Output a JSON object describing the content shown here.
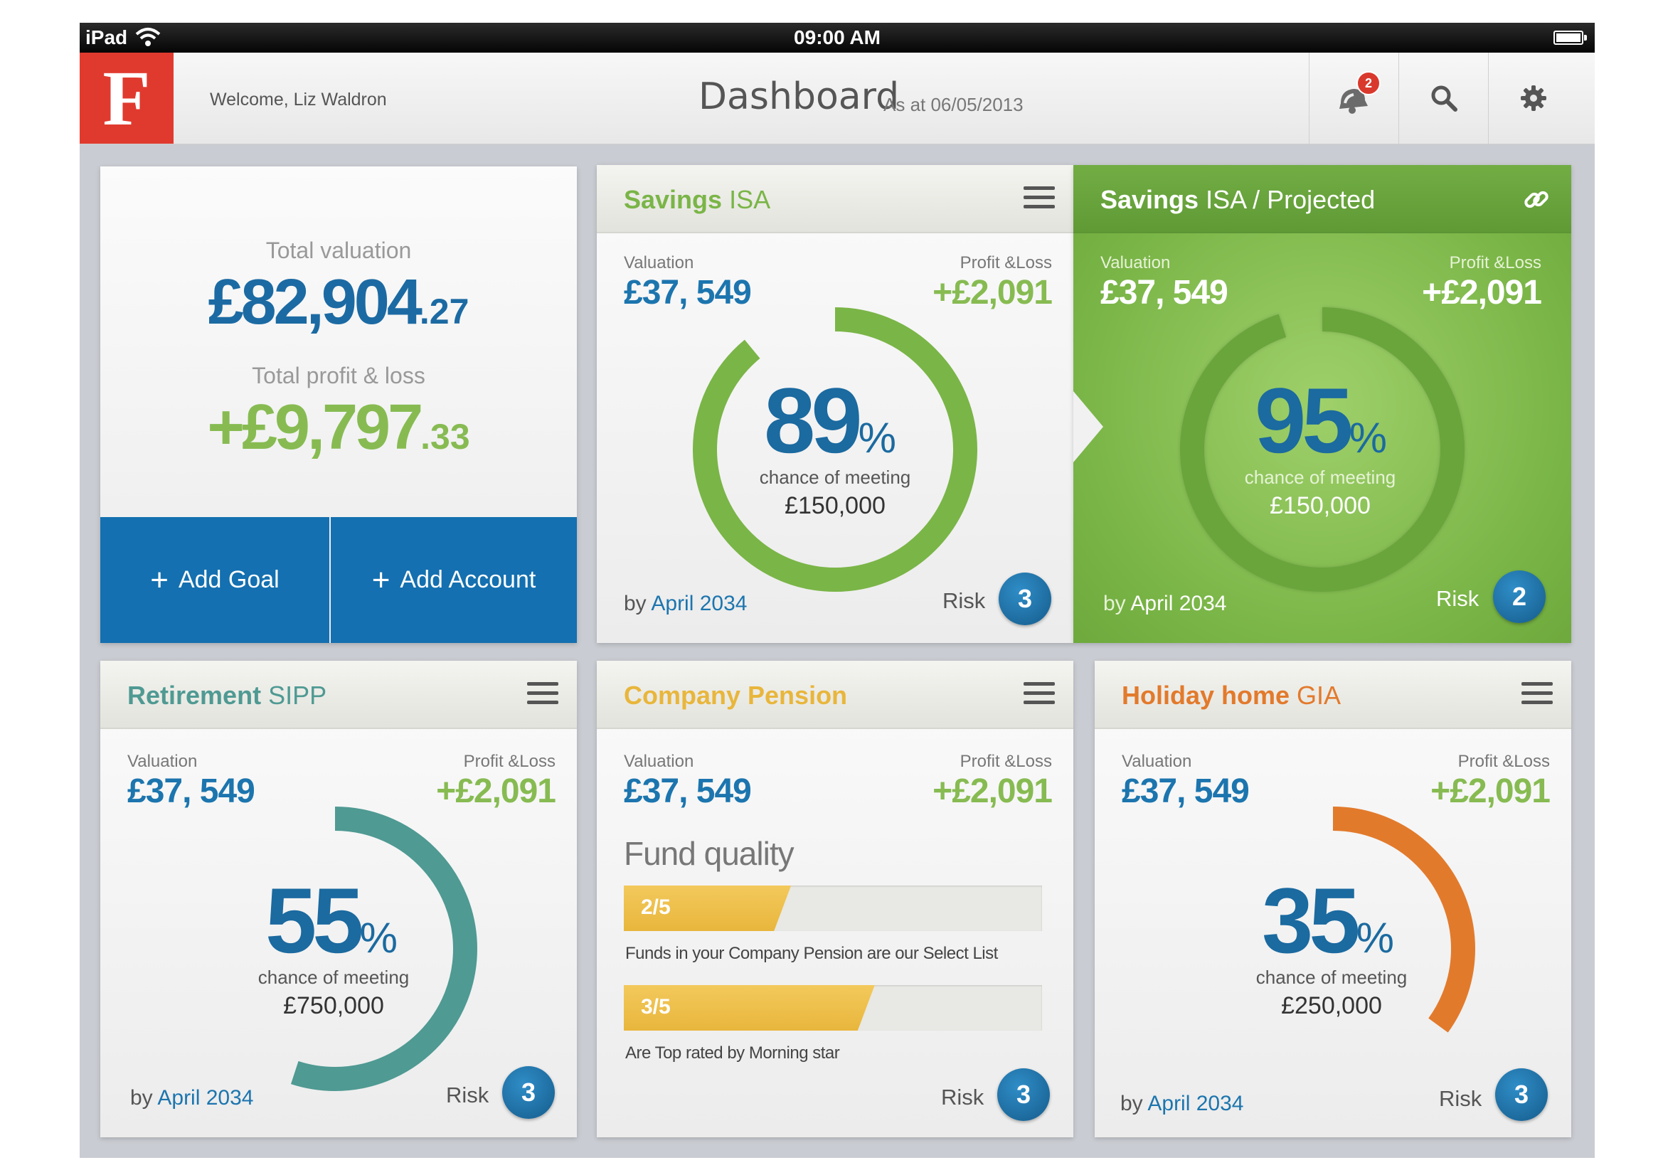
{
  "status_bar": {
    "device": "iPad",
    "time": "09:00 AM"
  },
  "header": {
    "welcome": "Welcome, Liz Waldron",
    "title": "Dashboard",
    "as_at": "As at 06/05/2013",
    "notification_count": "2"
  },
  "totals": {
    "valuation_label": "Total valuation",
    "valuation_main": "£82,904",
    "valuation_pence": ".27",
    "pl_label": "Total profit & loss",
    "pl_main": "+£9,797",
    "pl_pence": ".33",
    "add_goal": "Add Goal",
    "add_account": "Add Account"
  },
  "cards": {
    "savings": {
      "title_bold": "Savings",
      "title_rest": " ISA",
      "valuation_label": "Valuation",
      "valuation": "£37, 549",
      "pl_label": "Profit &Loss",
      "pl": "+£2,091",
      "percent": "89",
      "percent_sign": "%",
      "chance_label": "chance of meeting",
      "target": "£150,000",
      "by_prefix": "by ",
      "by_date": "April 2034",
      "risk_label": "Risk",
      "risk": "3",
      "progress": 0.89,
      "color": "#7ab547"
    },
    "projected": {
      "title_bold": "Savings",
      "title_rest": " ISA / Projected",
      "valuation_label": "Valuation",
      "valuation": "£37, 549",
      "pl_label": "Profit &Loss",
      "pl": "+£2,091",
      "percent": "95",
      "percent_sign": "%",
      "chance_label": "chance of meeting",
      "target": "£150,000",
      "by_prefix": "by ",
      "by_date": "April 2034",
      "risk_label": "Risk",
      "risk": "2",
      "progress": 0.95,
      "color": "#7ab547"
    },
    "retirement": {
      "title_bold": "Retirement",
      "title_rest": " SIPP",
      "valuation_label": "Valuation",
      "valuation": "£37, 549",
      "pl_label": "Profit &Loss",
      "pl": "+£2,091",
      "percent": "55",
      "percent_sign": "%",
      "chance_label": "chance of meeting",
      "target": "£750,000",
      "by_prefix": "by ",
      "by_date": "April 2034",
      "risk_label": "Risk",
      "risk": "3",
      "progress": 0.55,
      "color": "#4f9a93"
    },
    "pension": {
      "title_bold": "Company Pension",
      "valuation_label": "Valuation",
      "valuation": "£37, 549",
      "pl_label": "Profit &Loss",
      "pl": "+£2,091",
      "fund_quality_label": "Fund quality",
      "bars": [
        {
          "label": "2/5",
          "fraction": 0.4,
          "caption": "Funds in your Company Pension are our Select List"
        },
        {
          "label": "3/5",
          "fraction": 0.6,
          "caption": "Are Top rated by Morning star"
        }
      ],
      "risk_label": "Risk",
      "risk": "3",
      "color": "#e8b63c"
    },
    "holiday": {
      "title_bold": "Holiday home",
      "title_rest": " GIA",
      "valuation_label": "Valuation",
      "valuation": "£37, 549",
      "pl_label": "Profit &Loss",
      "pl": "+£2,091",
      "percent": "35",
      "percent_sign": "%",
      "chance_label": "chance of meeting",
      "target": "£250,000",
      "by_prefix": "by ",
      "by_date": "April 2034",
      "risk_label": "Risk",
      "risk": "3",
      "progress": 0.35,
      "color": "#e27a2c"
    }
  },
  "icons": {
    "wifi": "wifi-icon",
    "battery": "battery-icon",
    "notifications": "bell-icon",
    "search": "search-icon",
    "settings": "gear-icon",
    "menu": "menu-icon",
    "link": "link-icon"
  }
}
